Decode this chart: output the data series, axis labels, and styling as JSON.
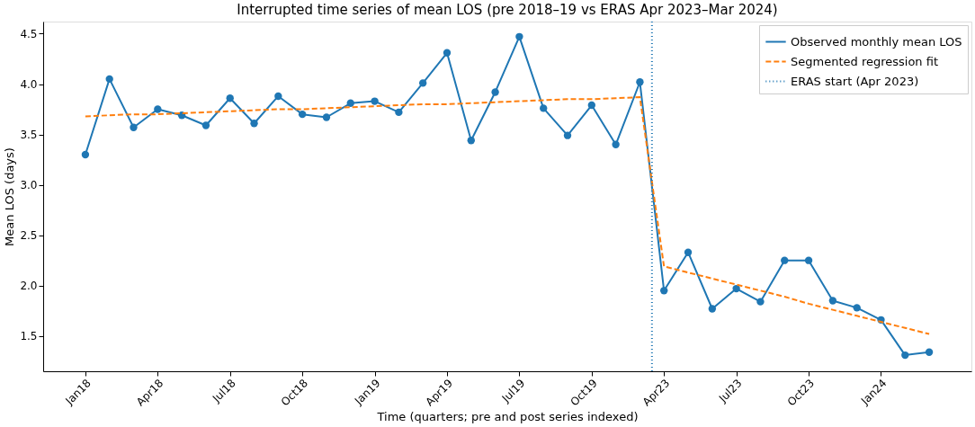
{
  "chart_data": {
    "type": "line",
    "title": "Interrupted time series of mean LOS (pre 2018–19 vs ERAS Apr 2023–Mar 2024)",
    "xlabel": "Time (quarters; pre and post series indexed)",
    "ylabel": "Mean LOS (days)",
    "categories": [
      "Jan18",
      null,
      null,
      "Apr18",
      null,
      null,
      "Jul18",
      null,
      null,
      "Oct18",
      null,
      null,
      "Jan19",
      null,
      null,
      "Apr19",
      null,
      null,
      "Jul19",
      null,
      null,
      "Oct19",
      null,
      null,
      "Apr23",
      null,
      null,
      "Jul23",
      null,
      null,
      "Oct23",
      null,
      null,
      "Jan24",
      null,
      null
    ],
    "series": [
      {
        "name": "Observed monthly mean LOS",
        "color": "#1f77b4",
        "marker": "circle",
        "line_style": "solid",
        "values": [
          3.3,
          4.05,
          3.57,
          3.75,
          3.69,
          3.59,
          3.86,
          3.61,
          3.88,
          3.7,
          3.67,
          3.81,
          3.83,
          3.72,
          4.01,
          4.31,
          3.44,
          3.92,
          4.47,
          3.76,
          3.49,
          3.79,
          3.4,
          4.02,
          1.95,
          2.33,
          1.77,
          1.97,
          1.84,
          2.25,
          2.25,
          1.85,
          1.78,
          1.66,
          1.31,
          1.34
        ]
      },
      {
        "name": "Segmented regression fit",
        "color": "#ff7f0e",
        "marker": "none",
        "line_style": "dashed",
        "values": [
          3.68,
          3.69,
          3.7,
          3.7,
          3.71,
          3.72,
          3.73,
          3.74,
          3.75,
          3.75,
          3.76,
          3.77,
          3.78,
          3.79,
          3.8,
          3.8,
          3.81,
          3.82,
          3.83,
          3.84,
          3.85,
          3.85,
          3.86,
          3.87,
          2.19,
          2.13,
          2.07,
          2.01,
          1.95,
          1.89,
          1.82,
          1.76,
          1.7,
          1.64,
          1.58,
          1.52
        ]
      }
    ],
    "annotations": [
      "ERAS start (Apr 2023)"
    ],
    "ylim": [
      1.15,
      4.62
    ],
    "yticks": [
      1.5,
      {
        "value": 2,
        "label": "2.0"
      },
      2.5,
      {
        "value": 3,
        "label": "3.0"
      },
      3.5,
      {
        "value": 4,
        "label": "4.0"
      },
      4.5
    ],
    "grid": false,
    "legend": "top right"
  }
}
